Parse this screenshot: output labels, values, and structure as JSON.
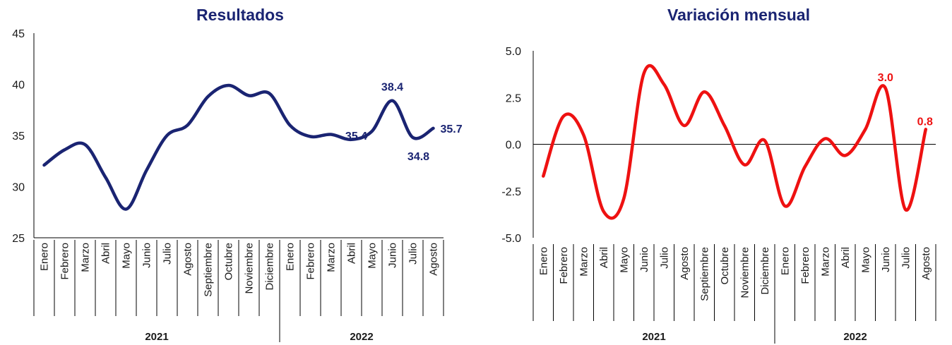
{
  "chart_data": [
    {
      "type": "line",
      "title": "Resultados",
      "color": "#1a2472",
      "ylim": [
        25,
        45
      ],
      "yticks": [
        25,
        30,
        35,
        40,
        45
      ],
      "ytick_labels": [
        "25",
        "30",
        "35",
        "40",
        "45"
      ],
      "categories": [
        "Enero",
        "Febrero",
        "Marzo",
        "Abril",
        "Mayo",
        "Junio",
        "Julio",
        "Agosto",
        "Septiembre",
        "Octubre",
        "Noviembre",
        "Diciembre",
        "Enero",
        "Febrero",
        "Marzo",
        "Abril",
        "Mayo",
        "Junio",
        "Julio",
        "Agosto"
      ],
      "years": [
        {
          "label": "2021",
          "count": 12
        },
        {
          "label": "2022",
          "count": 8
        }
      ],
      "values": [
        32.1,
        33.6,
        34.1,
        30.9,
        27.8,
        31.6,
        35.0,
        36.0,
        38.8,
        39.9,
        38.9,
        39.1,
        36.0,
        34.9,
        35.1,
        34.6,
        35.4,
        38.4,
        34.8,
        35.7
      ],
      "data_labels": [
        {
          "index": 16,
          "text": "35.4"
        },
        {
          "index": 17,
          "text": "38.4"
        },
        {
          "index": 18,
          "text": "34.8"
        },
        {
          "index": 19,
          "text": "35.7"
        }
      ],
      "grid": false,
      "legend": "none"
    },
    {
      "type": "line",
      "title": "Variación mensual",
      "color": "#ee1111",
      "ylim": [
        -5,
        5
      ],
      "yticks": [
        -5,
        -2.5,
        0,
        2.5,
        5
      ],
      "ytick_labels": [
        "-5.0",
        "-2.5",
        "0.0",
        "2.5",
        "5.0"
      ],
      "zero_line": true,
      "categories": [
        "Enero",
        "Febrero",
        "Marzo",
        "Abril",
        "Mayo",
        "Junio",
        "Julio",
        "Agosto",
        "Septiembre",
        "Octubre",
        "Noviembre",
        "Diciembre",
        "Enero",
        "Febrero",
        "Marzo",
        "Abril",
        "Mayo",
        "Junio",
        "Julio",
        "Agosto"
      ],
      "years": [
        {
          "label": "2021",
          "count": 12
        },
        {
          "label": "2022",
          "count": 8
        }
      ],
      "values": [
        -1.7,
        1.5,
        0.5,
        -3.6,
        -2.9,
        3.8,
        3.2,
        1.0,
        2.8,
        1.0,
        -1.1,
        0.2,
        -3.3,
        -1.2,
        0.3,
        -0.6,
        0.8,
        3.0,
        -3.5,
        0.8
      ],
      "data_labels": [
        {
          "index": 17,
          "text": "3.0"
        },
        {
          "index": 19,
          "text": "0.8"
        }
      ],
      "grid": false,
      "legend": "none"
    }
  ]
}
